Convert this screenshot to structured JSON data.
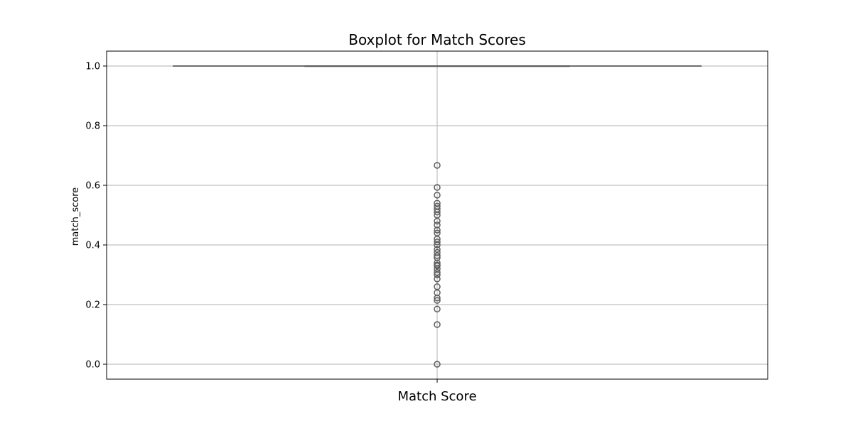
{
  "chart_data": {
    "type": "box",
    "title": "Boxplot for Match Scores",
    "xlabel": "Match Score",
    "ylabel": "match_score",
    "ylim": [
      -0.05,
      1.05
    ],
    "yticks": [
      "0.0",
      "0.2",
      "0.4",
      "0.6",
      "0.8",
      "1.0"
    ],
    "grid": true,
    "box": {
      "q1": 1.0,
      "median": 1.0,
      "q3": 1.0,
      "whisker_low": 1.0,
      "whisker_high": 1.0
    },
    "outliers": [
      0.0,
      0.133,
      0.185,
      0.214,
      0.222,
      0.24,
      0.26,
      0.286,
      0.3,
      0.308,
      0.32,
      0.33,
      0.333,
      0.34,
      0.357,
      0.364,
      0.375,
      0.385,
      0.4,
      0.41,
      0.42,
      0.44,
      0.45,
      0.467,
      0.48,
      0.5,
      0.51,
      0.52,
      0.53,
      0.54,
      0.567,
      0.593,
      0.667
    ],
    "colors": {
      "box_line": "#5a5a5a",
      "grid": "#b0b0b0"
    }
  }
}
